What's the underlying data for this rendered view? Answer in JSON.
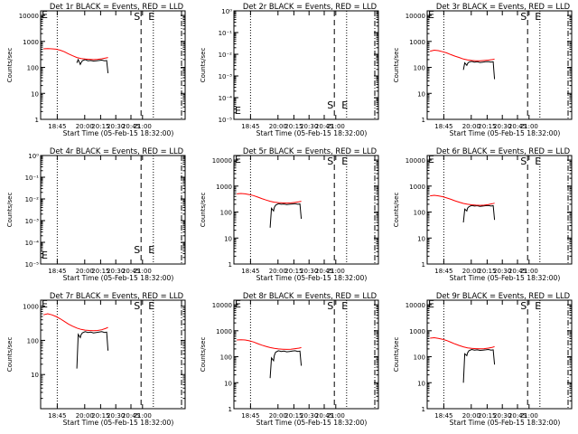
{
  "figure": {
    "xlabel": "Start Time (05-Feb-15 18:32:00)",
    "ylabel": "Counts/sec",
    "x_tick_labels": [
      "18:45",
      "20:00",
      "20:15",
      "20:30",
      "20:45",
      "21:00"
    ]
  },
  "colors": {
    "events": "#000000",
    "lld": "#ff0000",
    "axes": "#000000",
    "background": "#ffffff"
  },
  "markers": {
    "start": "S",
    "end": "E"
  },
  "chart_data": [
    {
      "type": "line",
      "title": "Det 1r BLACK = Events, RED = LLD",
      "ylabel": "Counts/sec",
      "xlabel": "Start Time (05-Feb-15 18:32:00)",
      "x_tick_labels": [
        "18:45",
        "20:00",
        "20:15",
        "20:30",
        "20:45",
        "21:00"
      ],
      "y_tick_labels": [
        "1",
        "10",
        "100",
        "1000",
        "10000"
      ],
      "y_scale": "log",
      "ylim": [
        1,
        15000
      ],
      "grid": false,
      "markers": [
        "S",
        "E"
      ],
      "series": [
        {
          "name": "Events",
          "color": "black",
          "x": [
            0.24,
            0.25,
            0.265,
            0.27,
            0.28,
            0.3,
            0.32,
            0.34,
            0.36,
            0.38,
            0.4,
            0.42,
            0.44,
            0.455,
            0.46,
            0.465
          ],
          "y": [
            150,
            200,
            130,
            150,
            180,
            200,
            180,
            185,
            175,
            180,
            185,
            190,
            180,
            185,
            100,
            60
          ]
        },
        {
          "name": "LLD",
          "color": "red",
          "x": [
            0.0,
            0.03,
            0.06,
            0.09,
            0.12,
            0.15,
            0.18,
            0.21,
            0.24,
            0.27,
            0.3,
            0.33,
            0.36,
            0.39,
            0.42,
            0.45,
            0.465
          ],
          "y": [
            520,
            530,
            520,
            500,
            460,
            400,
            330,
            280,
            240,
            220,
            210,
            205,
            200,
            205,
            215,
            230,
            240
          ]
        }
      ]
    },
    {
      "type": "line",
      "title": "Det 2r BLACK = Events, RED = LLD",
      "ylabel": "Counts/sec",
      "xlabel": "Start Time (05-Feb-15 18:32:00)",
      "x_tick_labels": [
        "18:45",
        "20:00",
        "20:15",
        "20:30",
        "20:45",
        "21:00"
      ],
      "y_tick_labels": [
        "10⁻⁵",
        "10⁻⁴",
        "10⁻³",
        "10⁻²",
        "10⁻¹",
        "10⁰"
      ],
      "y_scale": "log",
      "ylim": [
        1e-05,
        1
      ],
      "grid": false,
      "markers": [
        "S",
        "E"
      ],
      "series": []
    },
    {
      "type": "line",
      "title": "Det 3r BLACK = Events, RED = LLD",
      "ylabel": "Counts/sec",
      "xlabel": "Start Time (05-Feb-15 18:32:00)",
      "x_tick_labels": [
        "18:45",
        "20:00",
        "20:15",
        "20:30",
        "20:45",
        "21:00"
      ],
      "y_tick_labels": [
        "1",
        "10",
        "100",
        "1000",
        "10000"
      ],
      "y_scale": "log",
      "ylim": [
        1,
        15000
      ],
      "grid": false,
      "markers": [
        "S",
        "E"
      ],
      "series": [
        {
          "name": "Events",
          "color": "black",
          "x": [
            0.24,
            0.25,
            0.265,
            0.27,
            0.28,
            0.3,
            0.32,
            0.34,
            0.36,
            0.38,
            0.4,
            0.42,
            0.44,
            0.455,
            0.46,
            0.465
          ],
          "y": [
            80,
            150,
            120,
            140,
            160,
            170,
            160,
            165,
            155,
            160,
            165,
            168,
            160,
            165,
            70,
            35
          ]
        },
        {
          "name": "LLD",
          "color": "red",
          "x": [
            0.0,
            0.03,
            0.06,
            0.09,
            0.12,
            0.15,
            0.18,
            0.21,
            0.24,
            0.27,
            0.3,
            0.33,
            0.36,
            0.39,
            0.42,
            0.45,
            0.465
          ],
          "y": [
            420,
            460,
            440,
            400,
            360,
            310,
            270,
            240,
            210,
            195,
            185,
            180,
            180,
            185,
            190,
            200,
            210
          ]
        }
      ]
    },
    {
      "type": "line",
      "title": "Det 4r BLACK = Events, RED = LLD",
      "ylabel": "Counts/sec",
      "xlabel": "Start Time (05-Feb-15 18:32:00)",
      "x_tick_labels": [
        "18:45",
        "20:00",
        "20:15",
        "20:30",
        "20:45",
        "21:00"
      ],
      "y_tick_labels": [
        "10⁻⁵",
        "10⁻⁴",
        "10⁻³",
        "10⁻²",
        "10⁻¹",
        "10⁰"
      ],
      "y_scale": "log",
      "ylim": [
        1e-05,
        1
      ],
      "grid": false,
      "markers": [
        "S",
        "E"
      ],
      "series": []
    },
    {
      "type": "line",
      "title": "Det 5r BLACK = Events, RED = LLD",
      "ylabel": "Counts/sec",
      "xlabel": "Start Time (05-Feb-15 18:32:00)",
      "x_tick_labels": [
        "18:45",
        "20:00",
        "20:15",
        "20:30",
        "20:45",
        "21:00"
      ],
      "y_tick_labels": [
        "1",
        "10",
        "100",
        "1000",
        "10000"
      ],
      "y_scale": "log",
      "ylim": [
        1,
        15000
      ],
      "grid": false,
      "markers": [
        "S",
        "E"
      ],
      "series": [
        {
          "name": "Events",
          "color": "black",
          "x": [
            0.24,
            0.25,
            0.265,
            0.27,
            0.28,
            0.3,
            0.32,
            0.34,
            0.36,
            0.38,
            0.4,
            0.42,
            0.44,
            0.455,
            0.46,
            0.465
          ],
          "y": [
            25,
            140,
            110,
            150,
            185,
            210,
            200,
            205,
            195,
            200,
            205,
            210,
            200,
            205,
            100,
            55
          ]
        },
        {
          "name": "LLD",
          "color": "red",
          "x": [
            0.0,
            0.03,
            0.06,
            0.09,
            0.12,
            0.15,
            0.18,
            0.21,
            0.24,
            0.27,
            0.3,
            0.33,
            0.36,
            0.39,
            0.42,
            0.45,
            0.465
          ],
          "y": [
            500,
            520,
            500,
            470,
            430,
            380,
            330,
            290,
            260,
            240,
            230,
            225,
            222,
            225,
            235,
            250,
            260
          ]
        }
      ]
    },
    {
      "type": "line",
      "title": "Det 6r BLACK = Events, RED = LLD",
      "ylabel": "Counts/sec",
      "xlabel": "Start Time (05-Feb-15 18:32:00)",
      "x_tick_labels": [
        "18:45",
        "20:00",
        "20:15",
        "20:30",
        "20:45",
        "21:00"
      ],
      "y_tick_labels": [
        "1",
        "10",
        "100",
        "1000",
        "10000"
      ],
      "y_scale": "log",
      "ylim": [
        1,
        15000
      ],
      "grid": false,
      "markers": [
        "S",
        "E"
      ],
      "series": [
        {
          "name": "Events",
          "color": "black",
          "x": [
            0.24,
            0.25,
            0.265,
            0.27,
            0.28,
            0.3,
            0.32,
            0.34,
            0.36,
            0.38,
            0.4,
            0.42,
            0.44,
            0.455,
            0.46,
            0.465
          ],
          "y": [
            40,
            130,
            110,
            140,
            160,
            180,
            170,
            175,
            165,
            170,
            175,
            180,
            170,
            175,
            90,
            50
          ]
        },
        {
          "name": "LLD",
          "color": "red",
          "x": [
            0.0,
            0.03,
            0.06,
            0.09,
            0.12,
            0.15,
            0.18,
            0.21,
            0.24,
            0.27,
            0.3,
            0.33,
            0.36,
            0.39,
            0.42,
            0.45,
            0.465
          ],
          "y": [
            420,
            440,
            420,
            390,
            350,
            310,
            270,
            240,
            215,
            200,
            190,
            185,
            182,
            185,
            195,
            210,
            220
          ]
        }
      ]
    },
    {
      "type": "line",
      "title": "Det 7r BLACK = Events, RED = LLD",
      "ylabel": "Counts/sec",
      "xlabel": "Start Time (05-Feb-15 18:32:00)",
      "x_tick_labels": [
        "18:45",
        "20:00",
        "20:15",
        "20:30",
        "20:45",
        "21:00"
      ],
      "y_tick_labels": [
        "10",
        "100",
        "1000"
      ],
      "y_scale": "log",
      "ylim": [
        1,
        1500
      ],
      "grid": false,
      "markers": [
        "S",
        "E"
      ],
      "series": [
        {
          "name": "Events",
          "color": "black",
          "x": [
            0.24,
            0.25,
            0.265,
            0.27,
            0.28,
            0.3,
            0.32,
            0.34,
            0.36,
            0.38,
            0.4,
            0.42,
            0.44,
            0.455,
            0.46,
            0.465
          ],
          "y": [
            15,
            150,
            120,
            145,
            165,
            180,
            170,
            175,
            165,
            170,
            175,
            180,
            170,
            175,
            90,
            50
          ]
        },
        {
          "name": "LLD",
          "color": "red",
          "x": [
            0.0,
            0.03,
            0.06,
            0.09,
            0.12,
            0.15,
            0.18,
            0.21,
            0.24,
            0.27,
            0.3,
            0.33,
            0.36,
            0.39,
            0.42,
            0.45,
            0.465
          ],
          "y": [
            560,
            600,
            560,
            500,
            430,
            360,
            300,
            260,
            230,
            210,
            200,
            195,
            192,
            195,
            205,
            225,
            240
          ]
        }
      ]
    },
    {
      "type": "line",
      "title": "Det 8r BLACK = Events, RED = LLD",
      "ylabel": "Counts/sec",
      "xlabel": "Start Time (05-Feb-15 18:32:00)",
      "x_tick_labels": [
        "18:45",
        "20:00",
        "20:15",
        "20:30",
        "20:45",
        "21:00"
      ],
      "y_tick_labels": [
        "1",
        "10",
        "100",
        "1000",
        "10000"
      ],
      "y_scale": "log",
      "ylim": [
        1,
        15000
      ],
      "grid": false,
      "markers": [
        "S",
        "E"
      ],
      "series": [
        {
          "name": "Events",
          "color": "black",
          "x": [
            0.24,
            0.25,
            0.265,
            0.27,
            0.28,
            0.3,
            0.32,
            0.34,
            0.36,
            0.38,
            0.4,
            0.42,
            0.44,
            0.455,
            0.46,
            0.465
          ],
          "y": [
            15,
            90,
            70,
            110,
            150,
            170,
            160,
            165,
            155,
            160,
            165,
            170,
            160,
            165,
            80,
            45
          ]
        },
        {
          "name": "LLD",
          "color": "red",
          "x": [
            0.0,
            0.03,
            0.06,
            0.09,
            0.12,
            0.15,
            0.18,
            0.21,
            0.24,
            0.27,
            0.3,
            0.33,
            0.36,
            0.39,
            0.42,
            0.45,
            0.465
          ],
          "y": [
            440,
            450,
            440,
            410,
            370,
            320,
            280,
            250,
            225,
            210,
            200,
            195,
            192,
            195,
            205,
            215,
            225
          ]
        }
      ]
    },
    {
      "type": "line",
      "title": "Det 9r BLACK = Events, RED = LLD",
      "ylabel": "Counts/sec",
      "xlabel": "Start Time (05-Feb-15 18:32:00)",
      "x_tick_labels": [
        "18:45",
        "20:00",
        "20:15",
        "20:30",
        "20:45",
        "21:00"
      ],
      "y_tick_labels": [
        "1",
        "10",
        "100",
        "1000",
        "10000"
      ],
      "y_scale": "log",
      "ylim": [
        1,
        15000
      ],
      "grid": false,
      "markers": [
        "S",
        "E"
      ],
      "series": [
        {
          "name": "Events",
          "color": "black",
          "x": [
            0.24,
            0.25,
            0.265,
            0.27,
            0.28,
            0.3,
            0.32,
            0.34,
            0.36,
            0.38,
            0.4,
            0.42,
            0.44,
            0.455,
            0.46,
            0.465
          ],
          "y": [
            10,
            130,
            110,
            140,
            170,
            190,
            180,
            185,
            175,
            180,
            185,
            190,
            180,
            185,
            90,
            50
          ]
        },
        {
          "name": "LLD",
          "color": "red",
          "x": [
            0.0,
            0.03,
            0.06,
            0.09,
            0.12,
            0.15,
            0.18,
            0.21,
            0.24,
            0.27,
            0.3,
            0.33,
            0.36,
            0.39,
            0.42,
            0.45,
            0.465
          ],
          "y": [
            520,
            540,
            510,
            470,
            420,
            360,
            310,
            270,
            240,
            220,
            210,
            205,
            202,
            205,
            215,
            230,
            245
          ]
        }
      ]
    }
  ]
}
